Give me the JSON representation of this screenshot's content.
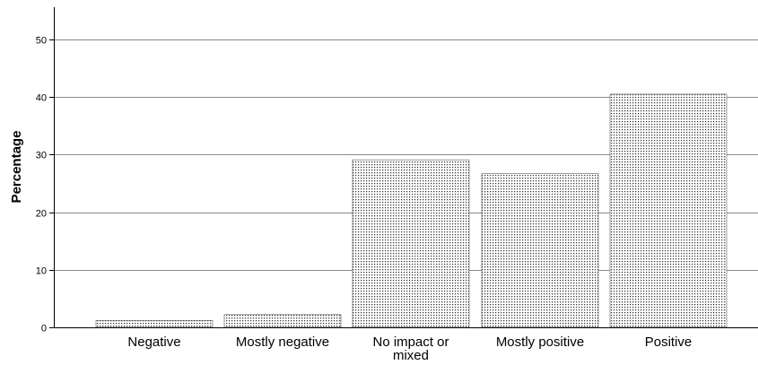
{
  "chart_data": {
    "type": "bar",
    "categories": [
      "Negative",
      "Mostly negative",
      "No impact or mixed",
      "Mostly positive",
      "Positive"
    ],
    "category_lines": [
      [
        "Negative"
      ],
      [
        "Mostly negative"
      ],
      [
        "No impact or",
        "mixed"
      ],
      [
        "Mostly positive"
      ],
      [
        "Positive"
      ]
    ],
    "values": [
      1.2,
      2.2,
      29.1,
      26.7,
      40.5
    ],
    "xlabel": "",
    "ylabel": "Percentage",
    "ylim": [
      0,
      55
    ],
    "yticks": [
      0,
      10,
      20,
      30,
      40,
      50
    ],
    "grid": true,
    "legend": "none",
    "bar_fill": "#ffffff",
    "bar_pattern": "stippled",
    "bar_stroke": "#555555",
    "dot_color": "#3c3c3c",
    "axis_color": "#000000",
    "grid_color": "#8a8a8a"
  }
}
